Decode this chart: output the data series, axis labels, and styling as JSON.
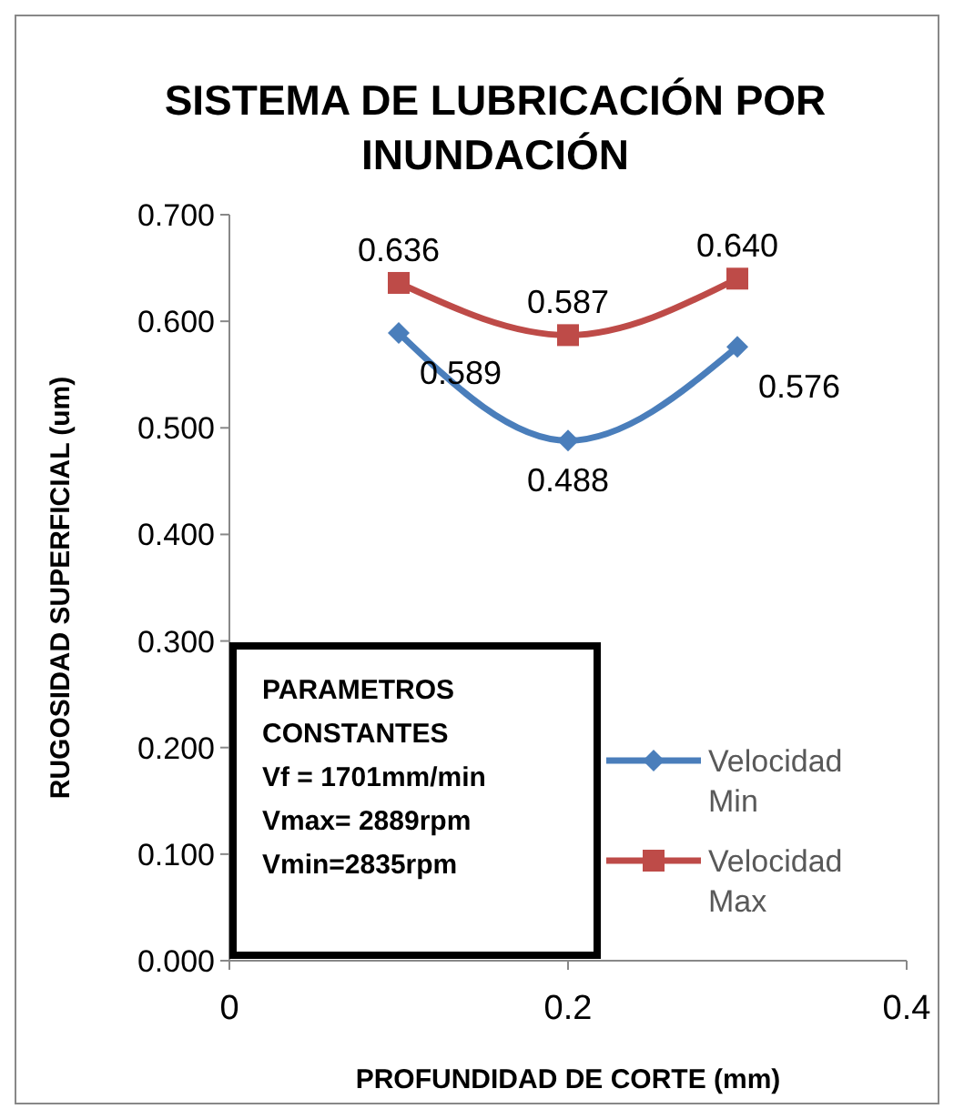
{
  "chart_data": {
    "type": "line",
    "title": "SISTEMA DE LUBRICACIÓN POR INUNDACIÓN",
    "xlabel": "PROFUNDIDAD DE CORTE (mm)",
    "ylabel": "RUGOSIDAD SUPERFICIAL (um)",
    "x": [
      0.1,
      0.2,
      0.3
    ],
    "series": [
      {
        "name": "Velocidad Min",
        "color": "#4a7ebb",
        "marker": "diamond",
        "values": [
          0.589,
          0.488,
          0.576
        ],
        "value_labels": [
          "0.589",
          "0.488",
          "0.576"
        ]
      },
      {
        "name": "Velocidad Max",
        "color": "#be4b48",
        "marker": "square",
        "values": [
          0.636,
          0.587,
          0.64
        ],
        "value_labels": [
          "0.636",
          "0.587",
          "0.640"
        ]
      }
    ],
    "xlim": [
      0,
      0.4
    ],
    "xticks": [
      0,
      0.2,
      0.4
    ],
    "ylim": [
      0,
      0.7
    ],
    "yticks": [
      {
        "value": 0,
        "label": "0.000"
      },
      {
        "value": 0.1,
        "label": "0.100"
      },
      {
        "value": 0.2,
        "label": "0.200"
      },
      {
        "value": 0.3,
        "label": "0.300"
      },
      {
        "value": 0.4,
        "label": "0.400"
      },
      {
        "value": 0.5,
        "label": "0.500"
      },
      {
        "value": 0.6,
        "label": "0.600"
      },
      {
        "value": 0.7,
        "label": "0.700"
      }
    ],
    "legend": "right",
    "grid": false,
    "annotations": [
      "PARAMETROS",
      "CONSTANTES",
      "Vf = 1701mm/min",
      "Vmax= 2889rpm",
      "Vmin=2835rpm"
    ]
  }
}
